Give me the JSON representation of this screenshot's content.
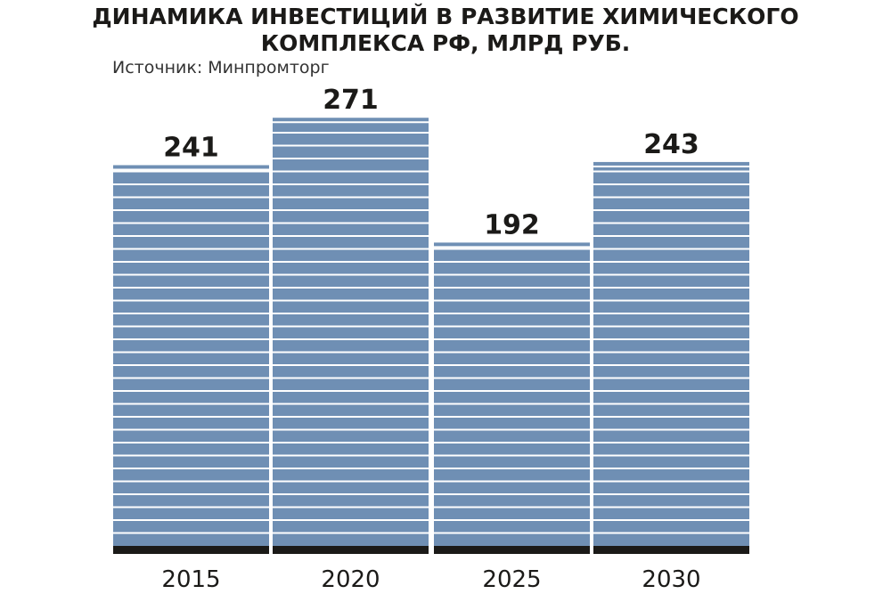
{
  "header": {
    "title_line1": "ДИНАМИКА ИНВЕСТИЦИЙ В РАЗВИТИЕ  ХИМИЧЕСКОГО",
    "title_line2": "КОМПЛЕКСА РФ, МЛРД РУБ.",
    "source": "Источник: Минпромторг"
  },
  "colors": {
    "bar": "#6f8fb4",
    "stripe": "#ffffff",
    "baseline": "#1b1a18",
    "text": "#1b1a18"
  },
  "chart_data": {
    "type": "bar",
    "title": "ДИНАМИКА ИНВЕСТИЦИЙ В РАЗВИТИЕ  ХИМИЧЕСКОГО КОМПЛЕКСА РФ, МЛРД РУБ.",
    "categories": [
      "2015",
      "2020",
      "2025",
      "2030"
    ],
    "values": [
      241,
      271,
      192,
      243
    ],
    "value_labels": [
      "241",
      "271",
      "192",
      "243"
    ],
    "xlabel": "",
    "ylabel": "",
    "ylim": [
      0,
      271
    ],
    "grid": false,
    "legend": "none"
  }
}
